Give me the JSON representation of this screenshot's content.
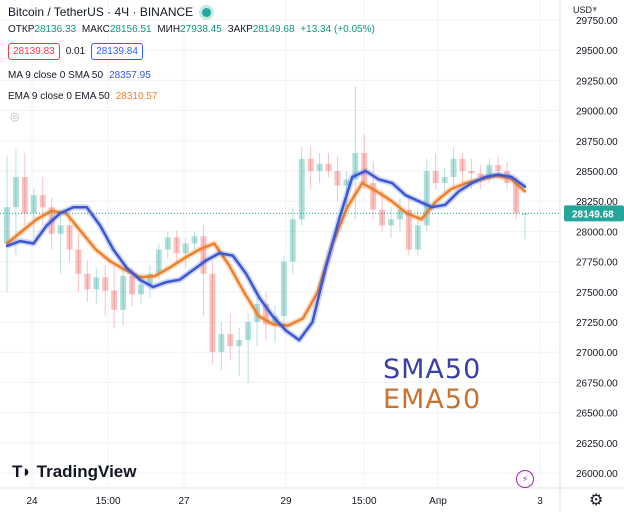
{
  "header": {
    "symbol": "Bitcoin / TetherUS · 4Ч · BINANCE",
    "ohlc": [
      {
        "label": "ОТКР",
        "value": "28136.33"
      },
      {
        "label": "МАКС",
        "value": "28156.51"
      },
      {
        "label": "МИН",
        "value": "27938.45"
      },
      {
        "label": "ЗАКР",
        "value": "28149.68"
      },
      {
        "label": "",
        "value": "+13.34 (+0.05%)"
      }
    ],
    "sell_price": "28139.83",
    "spread": "0.01",
    "buy_price": "28139.84"
  },
  "indicators": [
    {
      "label": "MA 9 close 0 SMA 50",
      "value": "28357.95"
    },
    {
      "label": "EMA 9 close 0 EMA 50",
      "value": "28310.57"
    }
  ],
  "price_scale": {
    "currency": "USD",
    "ticks": [
      "29750.00",
      "29500.00",
      "29250.00",
      "29000.00",
      "28750.00",
      "28500.00",
      "28250.00",
      "28000.00",
      "27750.00",
      "27500.00",
      "27250.00",
      "27000.00",
      "26750.00",
      "26500.00",
      "26250.00",
      "26000.00"
    ],
    "last_price_label": "28149.68"
  },
  "time_scale": {
    "ticks": [
      "24",
      "15:00",
      "27",
      "29",
      "15:00",
      "Апр",
      "3"
    ]
  },
  "watermark": {
    "logo_text": "TradingView",
    "sma_label": "SMA50",
    "ema_label": "EMA50"
  },
  "colors": {
    "up": "#26a69a",
    "down": "#ef5350",
    "sma": "#3a57d6",
    "ema": "#f07f2a",
    "last_price": "#26a69a"
  },
  "chart_data": {
    "type": "candlestick",
    "y_scale": {
      "min": 25900,
      "max": 29800
    },
    "candles_ohlc": [
      [
        27900,
        28620,
        27500,
        28200
      ],
      [
        28200,
        28680,
        27800,
        28450
      ],
      [
        28450,
        28650,
        28050,
        28150
      ],
      [
        28150,
        28360,
        27950,
        28300
      ],
      [
        28300,
        28450,
        28050,
        28200
      ],
      [
        28200,
        28280,
        27850,
        27980
      ],
      [
        27980,
        28160,
        27650,
        28050
      ],
      [
        28050,
        28100,
        27750,
        27850
      ],
      [
        27850,
        27980,
        27500,
        27650
      ],
      [
        27650,
        27760,
        27420,
        27520
      ],
      [
        27520,
        27700,
        27400,
        27620
      ],
      [
        27620,
        27720,
        27300,
        27510
      ],
      [
        27510,
        27700,
        27200,
        27350
      ],
      [
        27350,
        27680,
        27220,
        27630
      ],
      [
        27630,
        27700,
        27380,
        27480
      ],
      [
        27480,
        27650,
        27400,
        27560
      ],
      [
        27560,
        27720,
        27450,
        27650
      ],
      [
        27650,
        27900,
        27600,
        27850
      ],
      [
        27850,
        28000,
        27780,
        27950
      ],
      [
        27950,
        28010,
        27750,
        27820
      ],
      [
        27820,
        27950,
        27700,
        27900
      ],
      [
        27900,
        28000,
        27850,
        27960
      ],
      [
        27960,
        28050,
        27300,
        27650
      ],
      [
        27650,
        27750,
        26900,
        27000
      ],
      [
        27000,
        27250,
        26850,
        27150
      ],
      [
        27150,
        27320,
        26930,
        27050
      ],
      [
        27050,
        27200,
        26800,
        27100
      ],
      [
        27100,
        27320,
        26750,
        27250
      ],
      [
        27250,
        27450,
        27050,
        27400
      ],
      [
        27400,
        27500,
        27100,
        27230
      ],
      [
        27230,
        27380,
        27080,
        27300
      ],
      [
        27300,
        27800,
        27230,
        27750
      ],
      [
        27750,
        28200,
        27650,
        28100
      ],
      [
        28100,
        28700,
        28050,
        28600
      ],
      [
        28600,
        28700,
        28350,
        28500
      ],
      [
        28500,
        28650,
        28400,
        28560
      ],
      [
        28560,
        28650,
        28450,
        28500
      ],
      [
        28500,
        28620,
        28250,
        28380
      ],
      [
        28380,
        28500,
        28200,
        28430
      ],
      [
        28430,
        29200,
        28100,
        28650
      ],
      [
        28650,
        28800,
        28350,
        28400
      ],
      [
        28400,
        28580,
        28100,
        28180
      ],
      [
        28180,
        28350,
        28000,
        28050
      ],
      [
        28050,
        28200,
        27950,
        28100
      ],
      [
        28100,
        28280,
        28000,
        28180
      ],
      [
        28180,
        28300,
        27800,
        27850
      ],
      [
        27850,
        28200,
        27800,
        28050
      ],
      [
        28050,
        28600,
        28000,
        28500
      ],
      [
        28500,
        28650,
        28350,
        28400
      ],
      [
        28400,
        28520,
        28300,
        28450
      ],
      [
        28450,
        28700,
        28350,
        28600
      ],
      [
        28600,
        28650,
        28400,
        28500
      ],
      [
        28500,
        28600,
        28350,
        28480
      ],
      [
        28480,
        28550,
        28350,
        28450
      ],
      [
        28450,
        28600,
        28400,
        28550
      ],
      [
        28550,
        28620,
        28450,
        28500
      ],
      [
        28500,
        28580,
        28350,
        28400
      ],
      [
        28400,
        28450,
        28100,
        28150
      ],
      [
        28136.33,
        28156.51,
        27938.45,
        28149.68
      ]
    ],
    "sma50": [
      27880,
      27920,
      27900,
      28050,
      28150,
      28200,
      28200,
      28050,
      27850,
      27700,
      27600,
      27540,
      27580,
      27600,
      27680,
      27760,
      27820,
      27800,
      27650,
      27450,
      27300,
      27180,
      27100,
      27250,
      27700,
      28100,
      28450,
      28500,
      28430,
      28400,
      28300,
      28250,
      28200,
      28220,
      28330,
      28400,
      28450,
      28470,
      28450,
      28370
    ],
    "ema50": [
      27900,
      28000,
      28100,
      28170,
      28150,
      28000,
      27850,
      27750,
      27680,
      27620,
      27630,
      27700,
      27780,
      27850,
      27900,
      27720,
      27500,
      27300,
      27230,
      27220,
      27280,
      27500,
      27900,
      28200,
      28400,
      28330,
      28250,
      28150,
      28100,
      28250,
      28350,
      28400,
      28430,
      28460,
      28440,
      28330
    ],
    "title": "Bitcoin / TetherUS · 4Ч · BINANCE"
  }
}
